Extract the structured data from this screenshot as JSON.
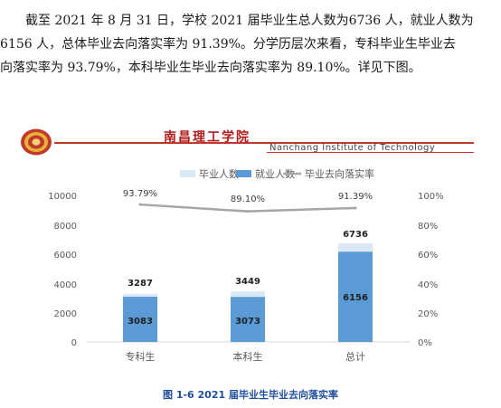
{
  "paragraph": {
    "line1": "截至 2021 年 8 月 31 日，学校 2021 届毕业生总人数为6736 人，就业人数为",
    "line2": "6156 人，总体毕业去向落实率为 91.39%。分学历层次来看，专科毕业生毕业去",
    "line3": "向落实率为 93.79%，本科毕业生毕业去向落实率为 89.10%。详见下图。"
  },
  "header": {
    "school_name": "南昌理工学院",
    "school_name_en": "Nanchang Institute of Technology",
    "colors": {
      "accent": "#b01c1c",
      "logo": "#c0392b"
    }
  },
  "chart_data": {
    "type": "bar",
    "categories": [
      "专科生",
      "本科生",
      "总计"
    ],
    "series": [
      {
        "name": "毕业人数",
        "values": [
          3287,
          3449,
          6736
        ],
        "color": "#dbe8f5"
      },
      {
        "name": "就业人数",
        "values": [
          3083,
          3073,
          6156
        ],
        "color": "#5b9bd5"
      },
      {
        "name": "毕业去向落实率",
        "values": [
          93.79,
          89.1,
          91.39
        ],
        "color": "#a5a5a5",
        "kind": "line",
        "axis": "right"
      }
    ],
    "rate_labels": [
      "93.79%",
      "89.10%",
      "91.39%"
    ],
    "total_labels": [
      "3287",
      "3449",
      "6736"
    ],
    "employed_labels": [
      "3083",
      "3073",
      "6156"
    ],
    "ylim": [
      0,
      10000
    ],
    "y_ticks": [
      "0",
      "2000",
      "4000",
      "6000",
      "8000",
      "10000"
    ],
    "y2lim": [
      0,
      100
    ],
    "y2_ticks": [
      "0%",
      "20%",
      "40%",
      "60%",
      "80%",
      "100%"
    ],
    "legend_position": "top"
  },
  "caption": "图 1-6 2021 届毕业生毕业去向落实率"
}
